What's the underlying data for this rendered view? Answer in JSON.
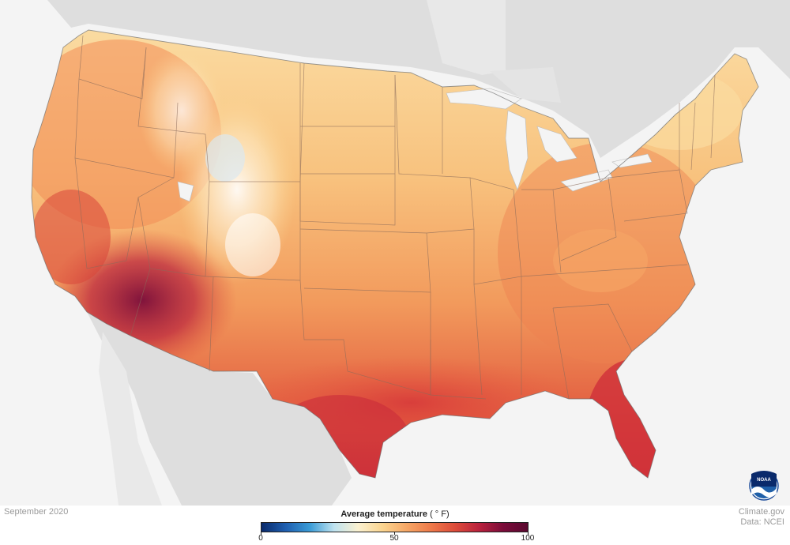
{
  "map": {
    "date": "September 2020",
    "credit_line1": "Climate.gov",
    "credit_line2": "Data: NCEI",
    "logo_text": "NOAA"
  },
  "legend": {
    "title": "Average temperature",
    "unit": "( ° F)",
    "min": 0,
    "max": 100,
    "ticks": [
      "0",
      "50",
      "100"
    ],
    "tick_values": [
      0,
      50,
      100
    ],
    "colors": [
      "#0a2a6b",
      "#1f5fb0",
      "#3a9bd6",
      "#bfe3f0",
      "#fbf1d0",
      "#fbd590",
      "#f6a766",
      "#ee7a4a",
      "#dd4c3a",
      "#b9213d",
      "#7a0c3a",
      "#5a0930"
    ]
  },
  "colors": {
    "land_background": "#f4f4f4",
    "neighbor_land": "#dedede",
    "state_borders": "#8a6a5a"
  }
}
